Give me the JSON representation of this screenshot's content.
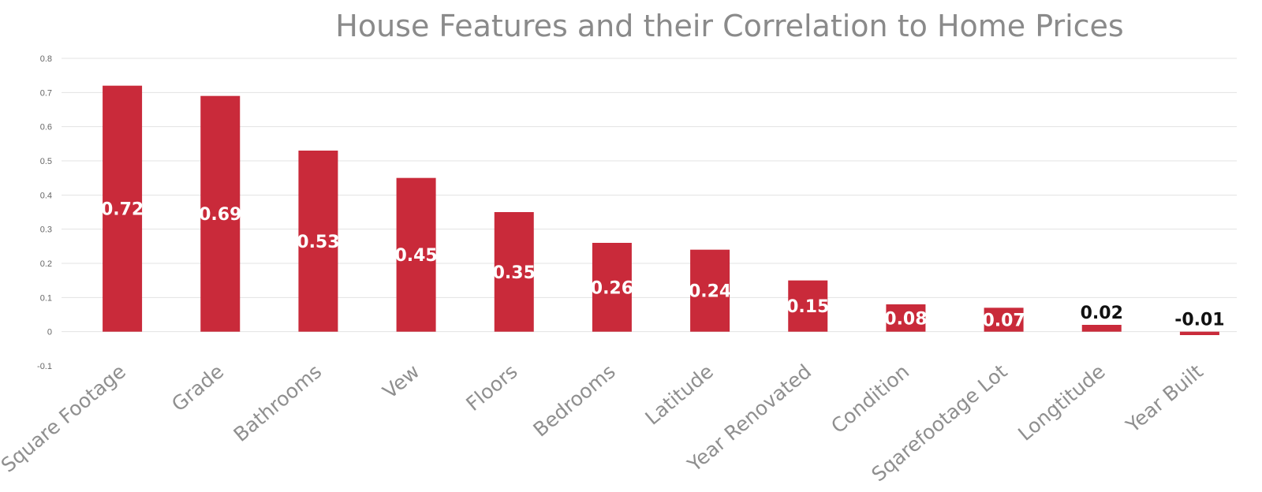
{
  "chart_data": {
    "type": "bar",
    "title": "House Features and their Correlation to Home Prices",
    "categories": [
      "Square Footage",
      "Grade",
      "Bathrooms",
      "Vew",
      "Floors",
      "Bedrooms",
      "Latitude",
      "Year Renovated",
      "Condition",
      "Sqarefootage Lot",
      "Longtitude",
      "Year Built"
    ],
    "values": [
      0.72,
      0.69,
      0.53,
      0.45,
      0.35,
      0.26,
      0.24,
      0.15,
      0.08,
      0.07,
      0.02,
      -0.01
    ],
    "data_labels": [
      "0.72",
      "0.69",
      "0.53",
      "0.45",
      "0.35",
      "0.26",
      "0.24",
      "0.15",
      "0.08",
      "0.07",
      "0.02",
      "-0.01"
    ],
    "y_ticks": [
      "-0.1",
      "0",
      "0.1",
      "0.2",
      "0.3",
      "0.4",
      "0.5",
      "0.6",
      "0.7",
      "0.8"
    ],
    "ylim": [
      -0.1,
      0.8
    ],
    "xlabel": "",
    "ylabel": "",
    "grid": true,
    "legend": "none",
    "colors": {
      "bar": "#c92a3a",
      "label_inside": "#ffffff",
      "label_outside": "#111111",
      "grid": "#e3e3e3",
      "title": "#8a8a8a",
      "category_text": "#8f8f8f",
      "tick_text": "#666666"
    }
  }
}
